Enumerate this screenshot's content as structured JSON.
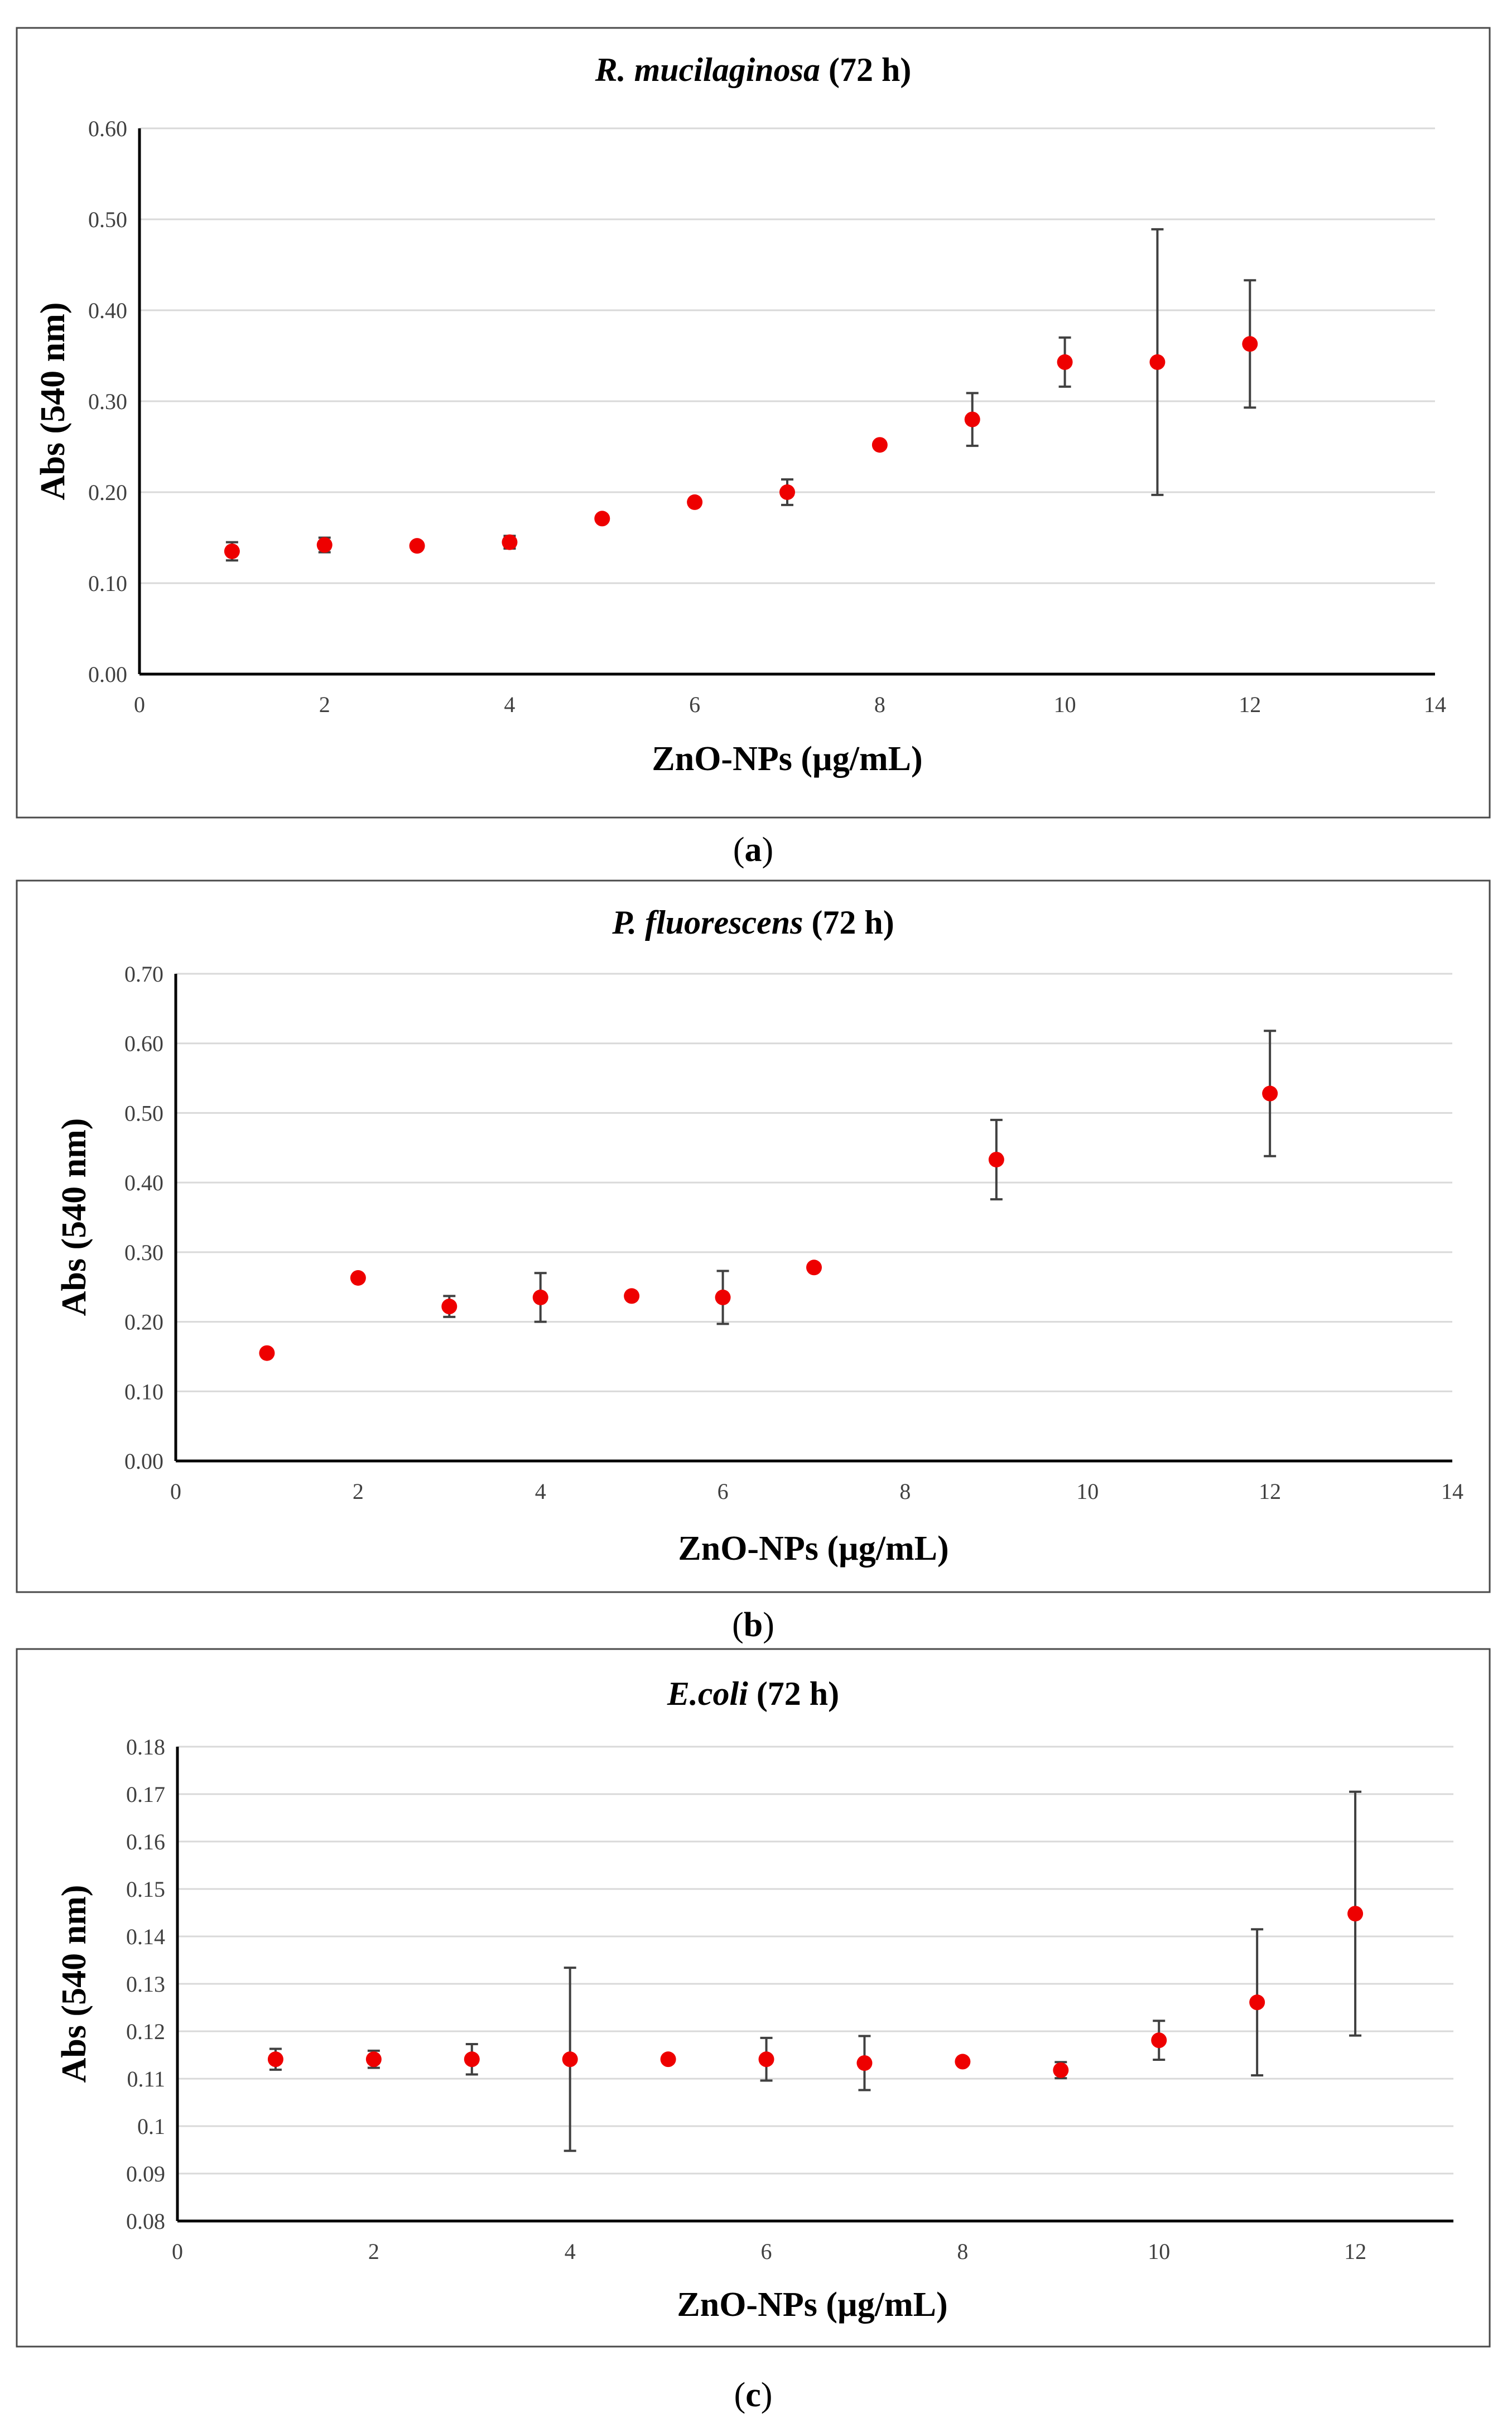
{
  "chart_data": [
    {
      "type": "scatter",
      "panel_label": "a",
      "title_species": "R. mucilaginosa",
      "title_suffix": "(72 h)",
      "xlabel": "ZnO-NPs (µg/mL)",
      "ylabel": "Abs (540 nm)",
      "xlim": [
        0,
        14
      ],
      "ylim": [
        0,
        0.6
      ],
      "x_ticks": [
        "0",
        "2",
        "4",
        "6",
        "8",
        "10",
        "12",
        "14"
      ],
      "y_ticks": [
        "0.00",
        "0.10",
        "0.20",
        "0.30",
        "0.40",
        "0.50",
        "0.60"
      ],
      "grid": true,
      "marker_color": "#ee0000",
      "points": [
        {
          "x": 1,
          "y": 0.135,
          "err": 0.01
        },
        {
          "x": 2,
          "y": 0.142,
          "err": 0.008
        },
        {
          "x": 3,
          "y": 0.141,
          "err": 0.004
        },
        {
          "x": 4,
          "y": 0.145,
          "err": 0.007
        },
        {
          "x": 5,
          "y": 0.171,
          "err": 0.003
        },
        {
          "x": 6,
          "y": 0.189,
          "err": 0.003
        },
        {
          "x": 7,
          "y": 0.2,
          "err": 0.014
        },
        {
          "x": 8,
          "y": 0.252,
          "err": 0.003
        },
        {
          "x": 9,
          "y": 0.28,
          "err": 0.029
        },
        {
          "x": 10,
          "y": 0.343,
          "err": 0.027
        },
        {
          "x": 11,
          "y": 0.343,
          "err": 0.146
        },
        {
          "x": 12,
          "y": 0.363,
          "err": 0.07
        }
      ]
    },
    {
      "type": "scatter",
      "panel_label": "b",
      "title_species": "P. fluorescens",
      "title_suffix": "(72 h)",
      "xlabel": "ZnO-NPs (µg/mL)",
      "ylabel": "Abs (540 nm)",
      "xlim": [
        0,
        14
      ],
      "ylim": [
        0,
        0.7
      ],
      "x_ticks": [
        "0",
        "2",
        "4",
        "6",
        "8",
        "10",
        "12",
        "14"
      ],
      "y_ticks": [
        "0.00",
        "0.10",
        "0.20",
        "0.30",
        "0.40",
        "0.50",
        "0.60",
        "0.70"
      ],
      "grid": true,
      "marker_color": "#ee0000",
      "points": [
        {
          "x": 1,
          "y": 0.155,
          "err": 0.004
        },
        {
          "x": 2,
          "y": 0.263,
          "err": 0.004
        },
        {
          "x": 3,
          "y": 0.222,
          "err": 0.015
        },
        {
          "x": 4,
          "y": 0.235,
          "err": 0.035
        },
        {
          "x": 5,
          "y": 0.237,
          "err": 0.004
        },
        {
          "x": 6,
          "y": 0.235,
          "err": 0.038
        },
        {
          "x": 7,
          "y": 0.278,
          "err": 0.004
        },
        {
          "x": 9,
          "y": 0.433,
          "err": 0.057
        },
        {
          "x": 12,
          "y": 0.528,
          "err": 0.09
        }
      ]
    },
    {
      "type": "scatter",
      "panel_label": "c",
      "title_species": "E.coli",
      "title_suffix": "(72 h)",
      "xlabel": "ZnO-NPs (µg/mL)",
      "ylabel": "Abs (540 nm)",
      "xlim": [
        0,
        13
      ],
      "ylim": [
        0.08,
        0.18
      ],
      "x_ticks": [
        "0",
        "2",
        "4",
        "6",
        "8",
        "10",
        "12"
      ],
      "x_tick_values": [
        0,
        2,
        4,
        6,
        8,
        10,
        12
      ],
      "y_ticks": [
        "0.08",
        "0.09",
        "0.1",
        "0.11",
        "0.12",
        "0.13",
        "0.14",
        "0.15",
        "0.16",
        "0.17",
        "0.18"
      ],
      "grid": true,
      "marker_color": "#ee0000",
      "points": [
        {
          "x": 1,
          "y": 0.1141,
          "err": 0.0022
        },
        {
          "x": 2,
          "y": 0.1141,
          "err": 0.0018
        },
        {
          "x": 3,
          "y": 0.1141,
          "err": 0.0032
        },
        {
          "x": 4,
          "y": 0.1141,
          "err": 0.0193
        },
        {
          "x": 5,
          "y": 0.1141,
          "err": 0.0007
        },
        {
          "x": 6,
          "y": 0.1141,
          "err": 0.0045
        },
        {
          "x": 7,
          "y": 0.1133,
          "err": 0.0057
        },
        {
          "x": 8,
          "y": 0.1136,
          "err": 0.0007
        },
        {
          "x": 9,
          "y": 0.1118,
          "err": 0.0017
        },
        {
          "x": 10,
          "y": 0.1181,
          "err": 0.0041
        },
        {
          "x": 11,
          "y": 0.1261,
          "err": 0.0154
        },
        {
          "x": 12,
          "y": 0.1448,
          "err": 0.0257
        }
      ]
    }
  ]
}
